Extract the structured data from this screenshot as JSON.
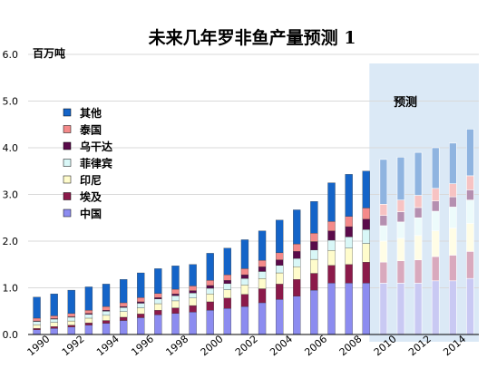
{
  "chart_data": {
    "type": "bar",
    "stacked": true,
    "title": "未来几年罗非鱼产量预测 1",
    "ylabel": "百万吨",
    "forecast_label": "预测",
    "ylim": [
      0,
      6
    ],
    "y_ticks": [
      "0.0",
      "1.0",
      "2.0",
      "3.0",
      "4.0",
      "5.0",
      "6.0"
    ],
    "x_tick_labels": [
      "1990",
      "1992",
      "1994",
      "1996",
      "1998",
      "2000",
      "2002",
      "2004",
      "2006",
      "2008",
      "2010",
      "2012",
      "2014"
    ],
    "categories": [
      "1990",
      "1991",
      "1992",
      "1993",
      "1994",
      "1995",
      "1996",
      "1997",
      "1998",
      "1999",
      "2000",
      "2001",
      "2002",
      "2003",
      "2004",
      "2005",
      "2006",
      "2007",
      "2008",
      "2009",
      "2010",
      "2011",
      "2012",
      "2013",
      "2014",
      "2015"
    ],
    "forecast_start": "2010",
    "grid": true,
    "legend_position": "top-left",
    "series": [
      {
        "name": "中国",
        "color": "#8c8cf0",
        "forecast_color": "#c9c9f3",
        "values": [
          0.1,
          0.13,
          0.16,
          0.2,
          0.24,
          0.3,
          0.36,
          0.42,
          0.45,
          0.48,
          0.52,
          0.56,
          0.6,
          0.68,
          0.75,
          0.82,
          0.95,
          1.1,
          1.1,
          1.1,
          1.1,
          1.1,
          1.1,
          1.15,
          1.15,
          1.2
        ]
      },
      {
        "name": "埃及",
        "color": "#8b1a4a",
        "forecast_color": "#d9a9bd",
        "values": [
          0.03,
          0.04,
          0.04,
          0.05,
          0.06,
          0.07,
          0.08,
          0.1,
          0.12,
          0.14,
          0.18,
          0.22,
          0.26,
          0.3,
          0.33,
          0.36,
          0.36,
          0.38,
          0.4,
          0.45,
          0.45,
          0.48,
          0.5,
          0.52,
          0.55,
          0.58
        ]
      },
      {
        "name": "印尼",
        "color": "#fffccc",
        "forecast_color": "#fffde6",
        "values": [
          0.08,
          0.09,
          0.09,
          0.1,
          0.11,
          0.12,
          0.13,
          0.14,
          0.15,
          0.16,
          0.17,
          0.18,
          0.2,
          0.22,
          0.24,
          0.27,
          0.3,
          0.32,
          0.35,
          0.4,
          0.45,
          0.48,
          0.52,
          0.55,
          0.58,
          0.6
        ]
      },
      {
        "name": "菲律宾",
        "color": "#d9f7f7",
        "forecast_color": "#edfbfb",
        "values": [
          0.07,
          0.07,
          0.08,
          0.08,
          0.09,
          0.09,
          0.1,
          0.1,
          0.11,
          0.11,
          0.12,
          0.13,
          0.14,
          0.15,
          0.16,
          0.18,
          0.2,
          0.22,
          0.24,
          0.3,
          0.33,
          0.35,
          0.38,
          0.42,
          0.45,
          0.5
        ]
      },
      {
        "name": "乌干达",
        "color": "#5a0a4a",
        "forecast_color": "#b58fb0",
        "values": [
          0.01,
          0.01,
          0.01,
          0.02,
          0.02,
          0.02,
          0.03,
          0.03,
          0.04,
          0.05,
          0.06,
          0.07,
          0.08,
          0.1,
          0.12,
          0.15,
          0.18,
          0.2,
          0.22,
          0.22,
          0.22,
          0.22,
          0.22,
          0.22,
          0.22,
          0.22
        ]
      },
      {
        "name": "泰国",
        "color": "#f48a8a",
        "forecast_color": "#f7c3c3",
        "values": [
          0.06,
          0.06,
          0.07,
          0.07,
          0.08,
          0.08,
          0.09,
          0.09,
          0.1,
          0.1,
          0.11,
          0.12,
          0.13,
          0.14,
          0.15,
          0.16,
          0.18,
          0.2,
          0.22,
          0.24,
          0.24,
          0.25,
          0.26,
          0.27,
          0.28,
          0.3
        ]
      },
      {
        "name": "其他",
        "color": "#1464c8",
        "forecast_color": "#8fb4e0",
        "values": [
          0.45,
          0.47,
          0.5,
          0.5,
          0.48,
          0.5,
          0.53,
          0.53,
          0.5,
          0.46,
          0.58,
          0.57,
          0.62,
          0.63,
          0.7,
          0.73,
          0.68,
          0.83,
          0.9,
          0.79,
          0.96,
          0.92,
          0.92,
          0.87,
          0.87,
          1.0
        ]
      }
    ]
  }
}
